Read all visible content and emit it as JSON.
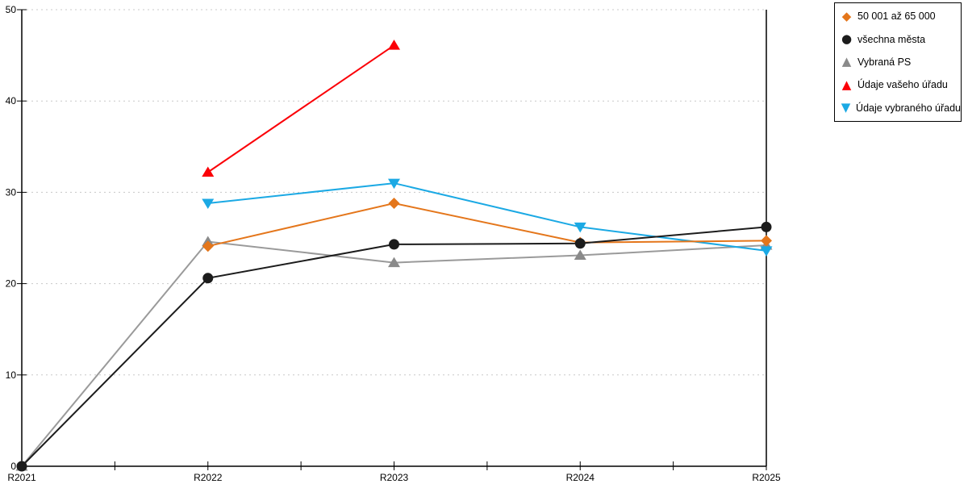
{
  "chart_data": {
    "type": "line",
    "title": "",
    "xlabel": "",
    "ylabel": "",
    "x_categories": [
      "R2021",
      "R2022",
      "R2023",
      "R2024",
      "R2025"
    ],
    "ylim": [
      0,
      50
    ],
    "yticks": [
      0,
      10,
      20,
      30,
      40,
      50
    ],
    "grid": "horizontal-dotted",
    "legend_position": "outside-top-right",
    "series": [
      {
        "name": "50 001 až 65 000",
        "marker": "diamond",
        "color": "#E4761B",
        "z": 2,
        "values": [
          null,
          24.1,
          28.8,
          24.5,
          24.7
        ]
      },
      {
        "name": "všechna města",
        "marker": "circle",
        "color": "#1C1C1C",
        "z": 3,
        "values": [
          0,
          20.6,
          24.3,
          24.4,
          26.2
        ]
      },
      {
        "name": "Vybraná PS",
        "marker": "triangle-up",
        "color": "#9A9A9A",
        "marker_color": "#8A8A8A",
        "z": 0,
        "values": [
          0,
          24.6,
          22.3,
          23.1,
          24.2
        ]
      },
      {
        "name": "Údaje vašeho úřadu",
        "marker": "triangle-up",
        "color": "#FB0007",
        "z": 4,
        "values": [
          null,
          32.2,
          46.1,
          null,
          null
        ]
      },
      {
        "name": "Údaje vybraného úřadu",
        "marker": "triangle-down",
        "color": "#1BA9E4",
        "z": 1,
        "values": [
          null,
          28.8,
          31.0,
          26.2,
          23.6
        ]
      }
    ]
  },
  "colors": {
    "axis": "#000000",
    "grid": "#C8C8C8",
    "background": "#FFFFFF",
    "legend_border": "#000000",
    "tick_text": "#000000"
  }
}
